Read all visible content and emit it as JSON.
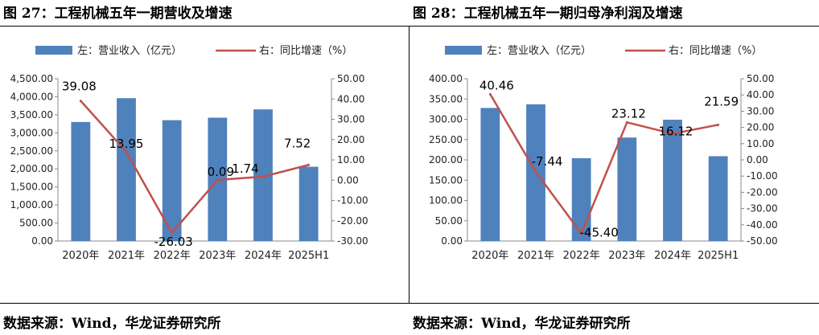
{
  "panels": [
    {
      "title": "图 27：工程机械五年一期营收及增速",
      "source": "数据来源：Wind，华龙证券研究所",
      "chart_data": {
        "type": "bar",
        "title": "",
        "categories": [
          "2020年",
          "2021年",
          "2022年",
          "2023年",
          "2024年",
          "2025H1"
        ],
        "series": [
          {
            "name": "左：营业收入（亿元）",
            "type": "bar",
            "axis": "left",
            "values": [
              3300,
              3960,
              3350,
              3420,
              3650,
              2060
            ],
            "color": "#4F81BD"
          },
          {
            "name": "右：同比增速（%）",
            "type": "line",
            "axis": "right",
            "values": [
              39.08,
              13.95,
              -26.03,
              0.09,
              1.74,
              7.52
            ],
            "color": "#C0504D"
          }
        ],
        "data_labels": [
          "39.08",
          "13.95",
          "-26.03",
          "0.09",
          "1.74",
          "7.52"
        ],
        "left_axis": {
          "ylim": [
            0,
            4500
          ],
          "ticks": [
            "0.00",
            "500.00",
            "1,000.00",
            "1,500.00",
            "2,000.00",
            "2,500.00",
            "3,000.00",
            "3,500.00",
            "4,000.00",
            "4,500.00"
          ]
        },
        "right_axis": {
          "ylim": [
            -30,
            50
          ],
          "ticks": [
            "-30.00",
            "-20.00",
            "-10.00",
            "0.00",
            "10.00",
            "20.00",
            "30.00",
            "40.00",
            "50.00"
          ]
        },
        "grid": false,
        "legend": "top"
      }
    },
    {
      "title": "图 28：工程机械五年一期归母净利润及增速",
      "source": "数据来源：Wind，华龙证券研究所",
      "chart_data": {
        "type": "bar",
        "title": "",
        "categories": [
          "2020年",
          "2021年",
          "2022年",
          "2023年",
          "2024年",
          "2025H1"
        ],
        "series": [
          {
            "name": "左：营业收入（亿元）",
            "type": "bar",
            "axis": "left",
            "values": [
              328,
              337,
              204,
              255,
              299,
              209
            ],
            "color": "#4F81BD"
          },
          {
            "name": "右：同比增速（%）",
            "type": "line",
            "axis": "right",
            "values": [
              40.46,
              -7.44,
              -45.4,
              23.12,
              16.12,
              21.59
            ],
            "color": "#C0504D"
          }
        ],
        "data_labels": [
          "40.46",
          "-7.44",
          "-45.40",
          "23.12",
          "16.12",
          "21.59"
        ],
        "left_axis": {
          "ylim": [
            0,
            400
          ],
          "ticks": [
            "0.00",
            "50.00",
            "100.00",
            "150.00",
            "200.00",
            "250.00",
            "300.00",
            "350.00",
            "400.00"
          ]
        },
        "right_axis": {
          "ylim": [
            -50,
            50
          ],
          "ticks": [
            "-50.00",
            "-40.00",
            "-30.00",
            "-20.00",
            "-10.00",
            "0.00",
            "10.00",
            "20.00",
            "30.00",
            "40.00",
            "50.00"
          ]
        },
        "grid": false,
        "legend": "top"
      }
    }
  ]
}
